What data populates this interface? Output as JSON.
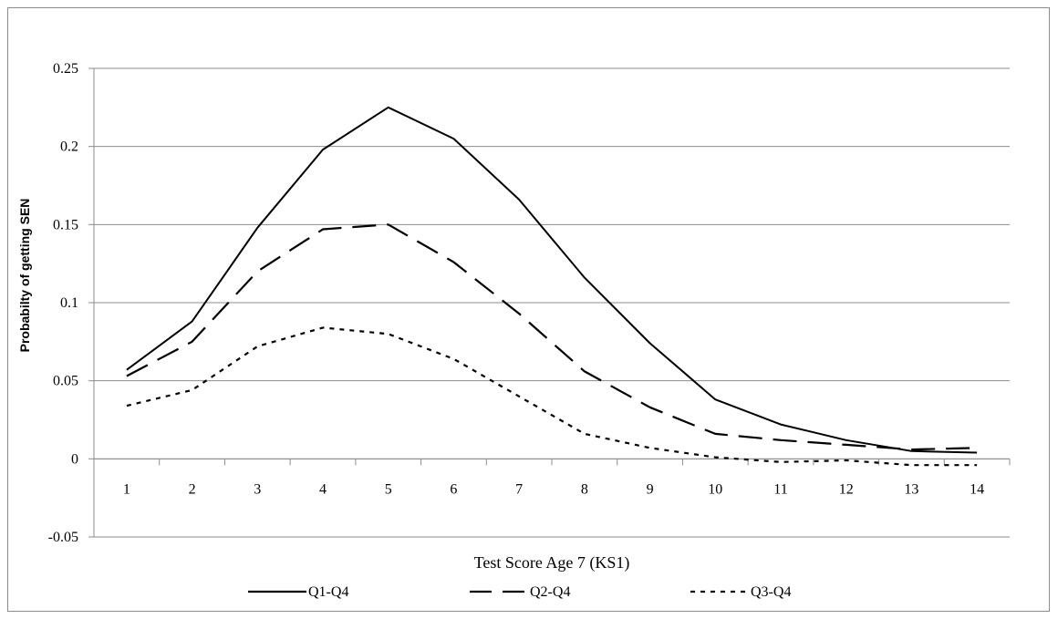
{
  "chart_data": {
    "type": "line",
    "title": "",
    "xlabel": "Test Score Age 7 (KS1)",
    "ylabel": "Probabilty of getting SEN",
    "categories": [
      "1",
      "2",
      "3",
      "4",
      "5",
      "6",
      "7",
      "8",
      "9",
      "10",
      "11",
      "12",
      "13",
      "14"
    ],
    "ylim": [
      -0.05,
      0.25
    ],
    "yticks": [
      "-0.05",
      "0",
      "0.05",
      "0.1",
      "0.15",
      "0.2",
      "0.25"
    ],
    "ytick_values": [
      -0.05,
      0,
      0.05,
      0.1,
      0.15,
      0.2,
      0.25
    ],
    "grid": "horizontal",
    "legend_position": "bottom",
    "series": [
      {
        "name": "Q1-Q4",
        "style": "solid",
        "color": "#000000",
        "values": [
          0.057,
          0.088,
          0.148,
          0.198,
          0.225,
          0.205,
          0.166,
          0.116,
          0.074,
          0.038,
          0.022,
          0.012,
          0.005,
          0.004
        ]
      },
      {
        "name": "Q2-Q4",
        "style": "long-dash",
        "color": "#000000",
        "values": [
          0.053,
          0.075,
          0.12,
          0.147,
          0.15,
          0.126,
          0.093,
          0.056,
          0.033,
          0.016,
          0.012,
          0.009,
          0.006,
          0.007
        ]
      },
      {
        "name": "Q3-Q4",
        "style": "short-dash",
        "color": "#000000",
        "values": [
          0.034,
          0.044,
          0.072,
          0.084,
          0.08,
          0.064,
          0.04,
          0.016,
          0.007,
          0.001,
          -0.002,
          -0.001,
          -0.004,
          -0.004
        ]
      }
    ]
  }
}
